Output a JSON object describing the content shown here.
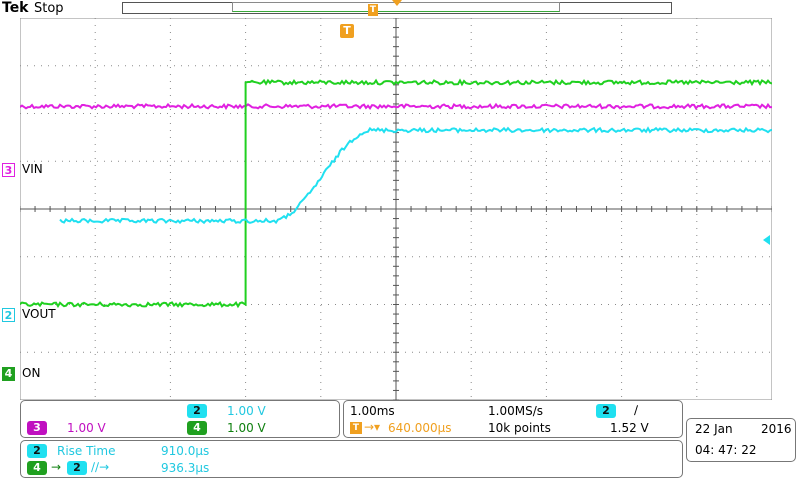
{
  "header": {
    "brand": "Tek",
    "status": "Stop",
    "trigger_pos_marker": "T"
  },
  "channels": {
    "ch3": {
      "label": "VIN",
      "number": "3",
      "color": "#e020e0"
    },
    "ch2": {
      "label": "VOUT",
      "number": "2",
      "color": "#20e0f0"
    },
    "ch4": {
      "label": "ON",
      "number": "4",
      "color": "#20d020"
    }
  },
  "colors": {
    "grid": "#8a8a8a",
    "trigger_orange": "#f0a020"
  },
  "waveforms": {
    "divisions_x": 10,
    "divisions_y": 8,
    "ch3_level_div": 1.85,
    "ch4_low_div": 6.0,
    "ch4_high_div": 1.35,
    "ch4_step_x_div": 3.0,
    "ch2_low_div": 4.25,
    "ch2_high_div": 2.35,
    "ch2_ramp_start_div": 3.4,
    "ch2_ramp_end_div": 4.65
  },
  "vertical": {
    "ch2_scale": "1.00 V",
    "ch3_scale": "1.00 V",
    "ch4_scale": "1.00 V"
  },
  "horizontal": {
    "timebase": "1.00ms",
    "sample_rate": "1.00MS/s",
    "trigger_delay": "640.000µs",
    "record_length": "10k points",
    "trigger_source": "2",
    "trigger_slope": "∕",
    "trigger_level": "1.52 V"
  },
  "datetime": {
    "date": "22 Jan",
    "year": "2016",
    "time": "04: 47: 22"
  },
  "measurements": [
    {
      "source": "2",
      "name": "Rise Time",
      "value": "910.0µs"
    },
    {
      "source": "4",
      "name": "→",
      "value": "936.3µs"
    }
  ],
  "measurement2_extra": "2",
  "measurement2_slopes": "∕∕→"
}
